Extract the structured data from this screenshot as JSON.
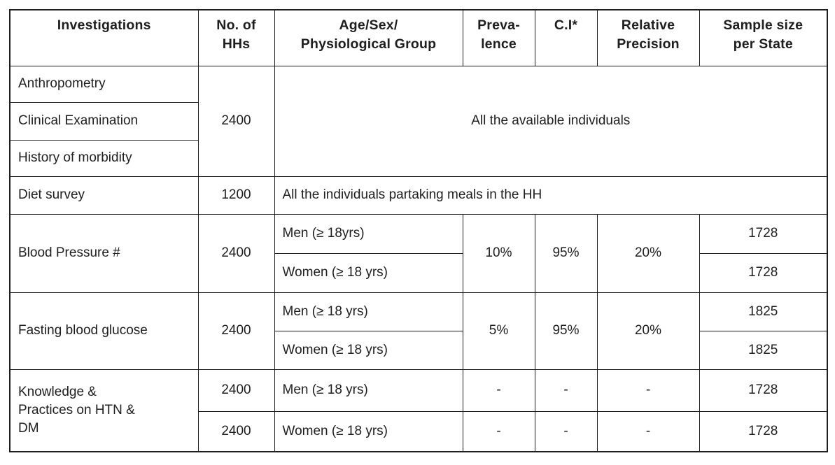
{
  "page": {
    "background": "#ffffff",
    "text_color": "#1e1e1e",
    "border_color": "#1e1e1e"
  },
  "table": {
    "header": [
      "Investigations",
      "No. of\nHHs",
      "Age/Sex/\nPhysiological Group",
      "Preva-\nlence",
      "C.I*",
      "Relative\nPrecision",
      "Sample size\nper State"
    ],
    "sections": [
      {
        "investigations": [
          "Anthropometry",
          "Clinical Examination",
          "History of morbidity"
        ],
        "no_of_hhs": "2400",
        "group_note": "All the available individuals"
      },
      {
        "investigation": "Diet survey",
        "no_of_hhs": "1200",
        "group_note": "All the individuals partaking meals in the HH"
      },
      {
        "investigation": "Blood Pressure #",
        "no_of_hhs": "2400",
        "groups": [
          "Men (≥ 18yrs)",
          "Women (≥ 18 yrs)"
        ],
        "prevalence": "10%",
        "ci": "95%",
        "relative_precision": "20%",
        "sample_sizes": [
          "1728",
          "1728"
        ]
      },
      {
        "investigation": "Fasting blood glucose",
        "no_of_hhs": "2400",
        "groups": [
          "Men (≥ 18 yrs)",
          "Women (≥ 18 yrs)"
        ],
        "prevalence": "5%",
        "ci": "95%",
        "relative_precision": "20%",
        "sample_sizes": [
          "1825",
          "1825"
        ]
      },
      {
        "investigation": "Knowledge &\nPractices on HTN &\nDM",
        "no_of_hhs_rows": [
          "2400",
          "2400"
        ],
        "groups": [
          "Men (≥ 18 yrs)",
          "Women (≥ 18 yrs)"
        ],
        "prevalence_rows": [
          "-",
          "-"
        ],
        "ci_rows": [
          "-",
          "-"
        ],
        "relative_precision_rows": [
          "-",
          "-"
        ],
        "sample_sizes": [
          "1728",
          "1728"
        ]
      }
    ]
  }
}
